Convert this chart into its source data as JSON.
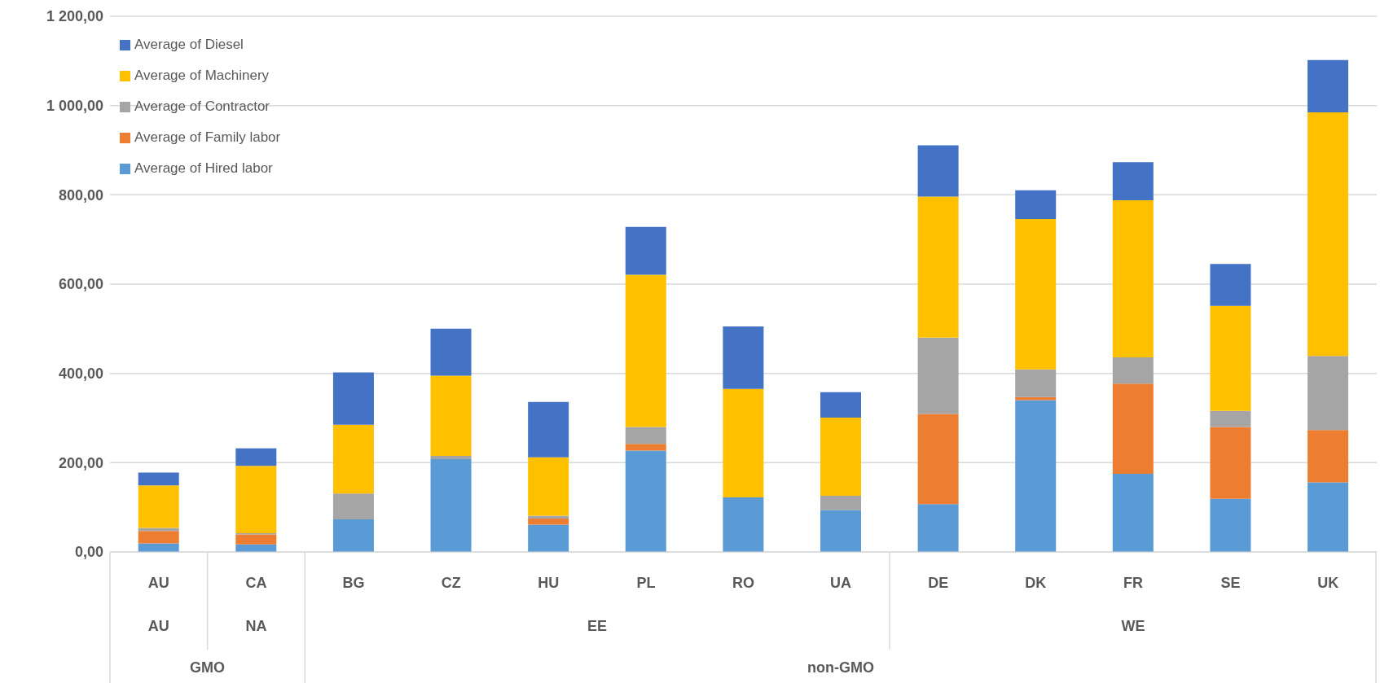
{
  "chart_data": {
    "type": "bar",
    "stacked": true,
    "categories": [
      "AU",
      "CA",
      "BG",
      "CZ",
      "HU",
      "PL",
      "RO",
      "UA",
      "DE",
      "DK",
      "FR",
      "SE",
      "UK"
    ],
    "series": [
      {
        "name": "Average of Hired labor",
        "color": "#5b9bd5",
        "values": [
          19,
          17,
          73,
          208,
          61,
          227,
          122,
          94,
          107,
          340,
          175,
          119,
          156
        ]
      },
      {
        "name": "Average of Family labor",
        "color": "#ed7d31",
        "values": [
          28,
          22,
          0,
          0,
          14,
          15,
          0,
          0,
          202,
          7,
          202,
          161,
          117
        ]
      },
      {
        "name": "Average of Contractor",
        "color": "#a5a5a5",
        "values": [
          7,
          3,
          58,
          7,
          6,
          38,
          0,
          32,
          171,
          62,
          59,
          36,
          166
        ]
      },
      {
        "name": "Average of Machinery",
        "color": "#ffc000",
        "values": [
          95,
          151,
          154,
          180,
          131,
          341,
          243,
          175,
          316,
          337,
          352,
          235,
          546
        ]
      },
      {
        "name": "Average of Diesel",
        "color": "#4472c4",
        "values": [
          29,
          39,
          117,
          105,
          124,
          107,
          140,
          57,
          115,
          64,
          85,
          94,
          117
        ]
      }
    ],
    "annotations": [
      "AU",
      "NA",
      "EE",
      "WE",
      "GMO",
      "non-GMO"
    ],
    "ylim": [
      0,
      1200
    ],
    "yticks": [
      {
        "value": 0,
        "label": "0,00"
      },
      {
        "value": 200,
        "label": "200,00"
      },
      {
        "value": 400,
        "label": "400,00"
      },
      {
        "value": 600,
        "label": "600,00"
      },
      {
        "value": 800,
        "label": "800,00"
      },
      {
        "value": 1000,
        "label": "1 000,00"
      },
      {
        "value": 1200,
        "label": "1 200,00"
      }
    ],
    "grid": "y",
    "legend": "top left"
  }
}
